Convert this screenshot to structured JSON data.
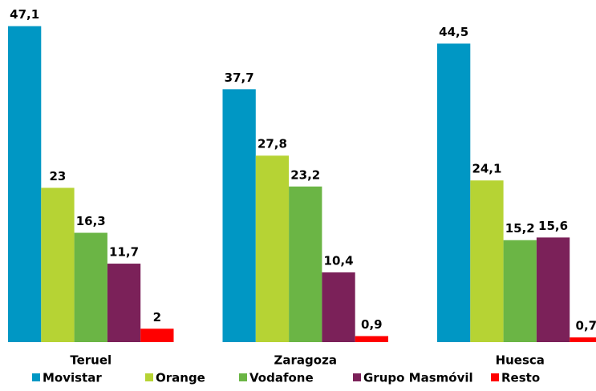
{
  "chart_data": {
    "type": "bar",
    "categories": [
      "Teruel",
      "Zaragoza",
      "Huesca"
    ],
    "series": [
      {
        "name": "Movistar",
        "color": "#0097c4",
        "values": [
          47.1,
          37.7,
          44.5
        ],
        "value_labels": [
          "47,1",
          "37,7",
          "44,5"
        ]
      },
      {
        "name": "Orange",
        "color": "#b6d334",
        "values": [
          23,
          27.8,
          24.1
        ],
        "value_labels": [
          "23",
          "27,8",
          "24,1"
        ]
      },
      {
        "name": "Vodafone",
        "color": "#6bb545",
        "values": [
          16.3,
          23.2,
          15.2
        ],
        "value_labels": [
          "16,3",
          "23,2",
          "15,2"
        ]
      },
      {
        "name": "Grupo Masmóvil",
        "color": "#7b2159",
        "values": [
          11.7,
          10.4,
          15.6
        ],
        "value_labels": [
          "11,7",
          "10,4",
          "15,6"
        ]
      },
      {
        "name": "Resto",
        "color": "#ff0000",
        "values": [
          2,
          0.9,
          0.7
        ],
        "value_labels": [
          "2",
          "0,9",
          "0,7"
        ]
      }
    ],
    "ylim": [
      0,
      51
    ],
    "grid": false,
    "legend": "bottom"
  }
}
